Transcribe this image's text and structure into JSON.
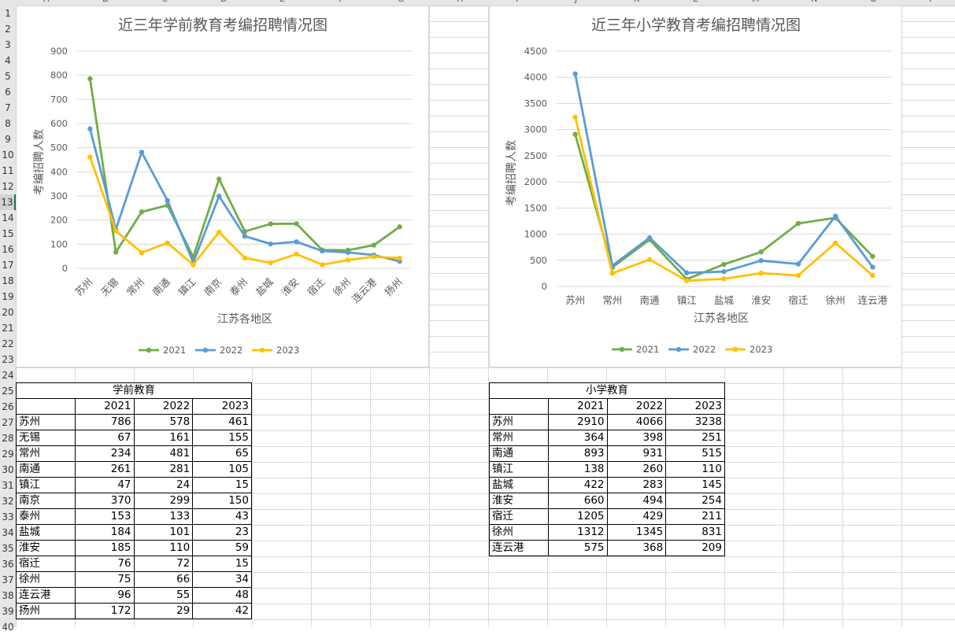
{
  "spreadsheet": {
    "column_headers": [
      "A",
      "B",
      "C",
      "D",
      "E",
      "F",
      "G",
      "H",
      "I",
      "J",
      "K",
      "L",
      "M",
      "N",
      "O",
      "P"
    ],
    "row_numbers": [
      "1",
      "2",
      "3",
      "4",
      "5",
      "6",
      "7",
      "8",
      "9",
      "10",
      "11",
      "12",
      "13",
      "14",
      "15",
      "16",
      "17",
      "18",
      "19",
      "20",
      "21",
      "22",
      "23",
      "24",
      "25",
      "26",
      "27",
      "28",
      "29",
      "30",
      "31",
      "32",
      "33",
      "34",
      "35",
      "36",
      "37",
      "38",
      "39",
      "40"
    ],
    "active_row": "13",
    "gridline_color": "#dadada"
  },
  "chart_data": [
    {
      "type": "line",
      "title": "近三年学前教育考编招聘情况图",
      "xlabel": "江苏各地区",
      "ylabel": "考编招聘人数",
      "categories": [
        "苏州",
        "无锡",
        "常州",
        "南通",
        "镇江",
        "南京",
        "泰州",
        "盐城",
        "淮安",
        "宿迁",
        "徐州",
        "连云港",
        "扬州"
      ],
      "ylim": [
        0,
        900
      ],
      "yticks": [
        "0",
        "100",
        "200",
        "300",
        "400",
        "500",
        "600",
        "700",
        "800",
        "900"
      ],
      "x_tick_rotation": "-45deg",
      "grid": true,
      "legend_position": "bottom",
      "series": [
        {
          "name": "2021",
          "color": "#70ad47",
          "values": [
            786,
            67,
            234,
            261,
            47,
            370,
            153,
            184,
            185,
            76,
            75,
            96,
            172
          ]
        },
        {
          "name": "2022",
          "color": "#5b9bd5",
          "values": [
            578,
            161,
            481,
            281,
            24,
            299,
            133,
            101,
            110,
            72,
            66,
            55,
            29
          ]
        },
        {
          "name": "2023",
          "color": "#ffc000",
          "values": [
            461,
            155,
            65,
            105,
            15,
            150,
            43,
            23,
            59,
            15,
            34,
            48,
            42
          ]
        }
      ]
    },
    {
      "type": "line",
      "title": "近三年小学教育考编招聘情况图",
      "xlabel": "江苏各地区",
      "ylabel": "考编招聘人数",
      "categories": [
        "苏州",
        "常州",
        "南通",
        "镇江",
        "盐城",
        "淮安",
        "宿迁",
        "徐州",
        "连云港"
      ],
      "ylim": [
        0,
        4500
      ],
      "yticks": [
        "0",
        "500",
        "1000",
        "1500",
        "2000",
        "2500",
        "3000",
        "3500",
        "4000",
        "4500"
      ],
      "x_tick_rotation": "0deg",
      "grid": true,
      "legend_position": "bottom",
      "series": [
        {
          "name": "2021",
          "color": "#70ad47",
          "values": [
            2910,
            364,
            893,
            138,
            422,
            660,
            1205,
            1312,
            575
          ]
        },
        {
          "name": "2022",
          "color": "#5b9bd5",
          "values": [
            4066,
            398,
            931,
            260,
            283,
            494,
            429,
            1345,
            368
          ]
        },
        {
          "name": "2023",
          "color": "#ffc000",
          "values": [
            3238,
            251,
            515,
            110,
            145,
            254,
            211,
            831,
            209
          ]
        }
      ]
    }
  ],
  "tables": {
    "preschool": {
      "title": "学前教育",
      "headers": [
        "",
        "2021",
        "2022",
        "2023"
      ],
      "rows": [
        [
          "苏州",
          "786",
          "578",
          "461"
        ],
        [
          "无锡",
          "67",
          "161",
          "155"
        ],
        [
          "常州",
          "234",
          "481",
          "65"
        ],
        [
          "南通",
          "261",
          "281",
          "105"
        ],
        [
          "镇江",
          "47",
          "24",
          "15"
        ],
        [
          "南京",
          "370",
          "299",
          "150"
        ],
        [
          "泰州",
          "153",
          "133",
          "43"
        ],
        [
          "盐城",
          "184",
          "101",
          "23"
        ],
        [
          "淮安",
          "185",
          "110",
          "59"
        ],
        [
          "宿迁",
          "76",
          "72",
          "15"
        ],
        [
          "徐州",
          "75",
          "66",
          "34"
        ],
        [
          "连云港",
          "96",
          "55",
          "48"
        ],
        [
          "扬州",
          "172",
          "29",
          "42"
        ]
      ]
    },
    "primary": {
      "title": "小学教育",
      "headers": [
        "",
        "2021",
        "2022",
        "2023"
      ],
      "rows": [
        [
          "苏州",
          "2910",
          "4066",
          "3238"
        ],
        [
          "常州",
          "364",
          "398",
          "251"
        ],
        [
          "南通",
          "893",
          "931",
          "515"
        ],
        [
          "镇江",
          "138",
          "260",
          "110"
        ],
        [
          "盐城",
          "422",
          "283",
          "145"
        ],
        [
          "淮安",
          "660",
          "494",
          "254"
        ],
        [
          "宿迁",
          "1205",
          "429",
          "211"
        ],
        [
          "徐州",
          "1312",
          "1345",
          "831"
        ],
        [
          "连云港",
          "575",
          "368",
          "209"
        ]
      ]
    }
  }
}
